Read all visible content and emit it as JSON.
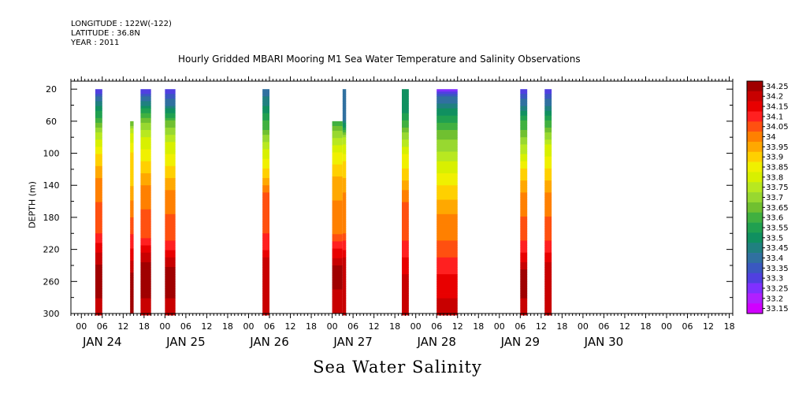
{
  "header": {
    "longitude": "LONGITUDE : 122W(-122)",
    "latitude": "LATITUDE : 36.8N",
    "year": "YEAR : 2011"
  },
  "chart_data": {
    "type": "heatmap",
    "title": "Hourly Gridded MBARI Mooring M1 Sea Water Temperature and Salinity Observations",
    "xlabel": "Sea Water Salinity",
    "ylabel": "DEPTH (m)",
    "x_unit": "hours since JAN 24 2011 00:00",
    "xlim": [
      -3,
      187
    ],
    "ylim": [
      300,
      10
    ],
    "y_inverted": true,
    "y_ticks": [
      20,
      60,
      100,
      140,
      180,
      220,
      260,
      300
    ],
    "x_hour_labels": [
      "00",
      "06",
      "12",
      "18",
      "00",
      "06",
      "12",
      "18",
      "00",
      "06",
      "12",
      "18",
      "00",
      "06",
      "12",
      "18",
      "00",
      "06",
      "12",
      "18",
      "00",
      "06",
      "12",
      "18",
      "00",
      "06",
      "12",
      "18",
      "00",
      "06",
      "12",
      "18"
    ],
    "date_labels": [
      "JAN 24",
      "JAN 25",
      "JAN 26",
      "JAN 27",
      "JAN 28",
      "JAN 29",
      "JAN 30"
    ],
    "colorbar": {
      "levels": [
        "34.25",
        "34.2",
        "34.15",
        "34.1",
        "34.05",
        "34",
        "33.95",
        "33.9",
        "33.85",
        "33.8",
        "33.75",
        "33.7",
        "33.65",
        "33.6",
        "33.55",
        "33.5",
        "33.45",
        "33.4",
        "33.35",
        "33.3",
        "33.25",
        "33.2",
        "33.15"
      ],
      "colors": [
        "#a00000",
        "#c80000",
        "#e80000",
        "#ff2020",
        "#ff5010",
        "#ff8000",
        "#ffa800",
        "#ffd000",
        "#f0f000",
        "#d8f000",
        "#b8e820",
        "#98d830",
        "#70c030",
        "#40b040",
        "#20a050",
        "#109060",
        "#208080",
        "#3070a0",
        "#3a58c0",
        "#5040e0",
        "#8030ff",
        "#b020ff",
        "#d000ff"
      ]
    },
    "profiles": [
      {
        "start": 4,
        "end": 6,
        "top": 20,
        "values": [
          [
            20,
            33.25
          ],
          [
            35,
            33.4
          ],
          [
            55,
            33.55
          ],
          [
            75,
            33.7
          ],
          [
            100,
            33.85
          ],
          [
            130,
            33.95
          ],
          [
            160,
            34.0
          ],
          [
            200,
            34.05
          ],
          [
            225,
            34.15
          ],
          [
            255,
            34.25
          ],
          [
            280,
            34.2
          ],
          [
            300,
            34.15
          ]
        ]
      },
      {
        "start": 14,
        "end": 15,
        "top": 60,
        "values": [
          [
            60,
            33.6
          ],
          [
            75,
            33.75
          ],
          [
            100,
            33.85
          ],
          [
            140,
            33.9
          ],
          [
            180,
            34.0
          ],
          [
            220,
            34.1
          ],
          [
            250,
            34.2
          ],
          [
            300,
            34.2
          ]
        ]
      },
      {
        "start": 17,
        "end": 20,
        "top": 20,
        "values": [
          [
            20,
            33.25
          ],
          [
            35,
            33.4
          ],
          [
            55,
            33.6
          ],
          [
            80,
            33.75
          ],
          [
            110,
            33.85
          ],
          [
            140,
            33.95
          ],
          [
            170,
            34.0
          ],
          [
            205,
            34.05
          ],
          [
            225,
            34.15
          ],
          [
            250,
            34.25
          ],
          [
            280,
            34.2
          ],
          [
            300,
            34.15
          ]
        ]
      },
      {
        "start": 24,
        "end": 27,
        "top": 20,
        "values": [
          [
            20,
            33.25
          ],
          [
            40,
            33.4
          ],
          [
            60,
            33.6
          ],
          [
            85,
            33.75
          ],
          [
            115,
            33.85
          ],
          [
            145,
            33.95
          ],
          [
            175,
            34.0
          ],
          [
            210,
            34.05
          ],
          [
            230,
            34.15
          ],
          [
            255,
            34.25
          ],
          [
            280,
            34.2
          ],
          [
            300,
            34.15
          ]
        ]
      },
      {
        "start": 52,
        "end": 54,
        "top": 20,
        "values": [
          [
            20,
            33.35
          ],
          [
            50,
            33.5
          ],
          [
            70,
            33.6
          ],
          [
            95,
            33.75
          ],
          [
            130,
            33.9
          ],
          [
            150,
            34.0
          ],
          [
            200,
            34.05
          ],
          [
            220,
            34.1
          ],
          [
            240,
            34.2
          ],
          [
            300,
            34.15
          ]
        ]
      },
      {
        "start": 72,
        "end": 75,
        "top": 60,
        "values": [
          [
            60,
            33.55
          ],
          [
            80,
            33.7
          ],
          [
            100,
            33.8
          ],
          [
            130,
            33.9
          ],
          [
            160,
            33.95
          ],
          [
            200,
            34.0
          ],
          [
            220,
            34.1
          ],
          [
            240,
            34.2
          ],
          [
            270,
            34.2
          ],
          [
            300,
            34.15
          ]
        ]
      },
      {
        "start": 75,
        "end": 76,
        "top": 20,
        "values": [
          [
            20,
            33.35
          ],
          [
            60,
            33.4
          ],
          [
            80,
            33.7
          ],
          [
            110,
            33.85
          ],
          [
            150,
            33.95
          ],
          [
            200,
            34.0
          ],
          [
            220,
            34.1
          ],
          [
            240,
            34.2
          ],
          [
            300,
            34.15
          ]
        ]
      },
      {
        "start": 92,
        "end": 94,
        "top": 20,
        "values": [
          [
            20,
            33.45
          ],
          [
            50,
            33.5
          ],
          [
            75,
            33.65
          ],
          [
            100,
            33.8
          ],
          [
            135,
            33.9
          ],
          [
            160,
            34.0
          ],
          [
            210,
            34.05
          ],
          [
            230,
            34.1
          ],
          [
            250,
            34.15
          ],
          [
            300,
            34.15
          ]
        ]
      },
      {
        "start": 102,
        "end": 108,
        "top": 20,
        "values": [
          [
            20,
            33.2
          ],
          [
            30,
            33.35
          ],
          [
            45,
            33.45
          ],
          [
            70,
            33.6
          ],
          [
            110,
            33.75
          ],
          [
            140,
            33.85
          ],
          [
            175,
            33.95
          ],
          [
            210,
            34.0
          ],
          [
            230,
            34.05
          ],
          [
            250,
            34.1
          ],
          [
            280,
            34.15
          ],
          [
            300,
            34.15
          ]
        ]
      },
      {
        "start": 126,
        "end": 128,
        "top": 20,
        "values": [
          [
            20,
            33.25
          ],
          [
            40,
            33.4
          ],
          [
            60,
            33.55
          ],
          [
            90,
            33.7
          ],
          [
            120,
            33.85
          ],
          [
            150,
            33.95
          ],
          [
            180,
            34.0
          ],
          [
            210,
            34.05
          ],
          [
            235,
            34.15
          ],
          [
            255,
            34.25
          ],
          [
            280,
            34.2
          ],
          [
            300,
            34.15
          ]
        ]
      },
      {
        "start": 133,
        "end": 135,
        "top": 20,
        "values": [
          [
            20,
            33.25
          ],
          [
            40,
            33.4
          ],
          [
            60,
            33.55
          ],
          [
            90,
            33.75
          ],
          [
            120,
            33.85
          ],
          [
            150,
            33.95
          ],
          [
            180,
            34.0
          ],
          [
            210,
            34.05
          ],
          [
            235,
            34.15
          ],
          [
            260,
            34.2
          ],
          [
            300,
            34.15
          ]
        ]
      }
    ]
  }
}
